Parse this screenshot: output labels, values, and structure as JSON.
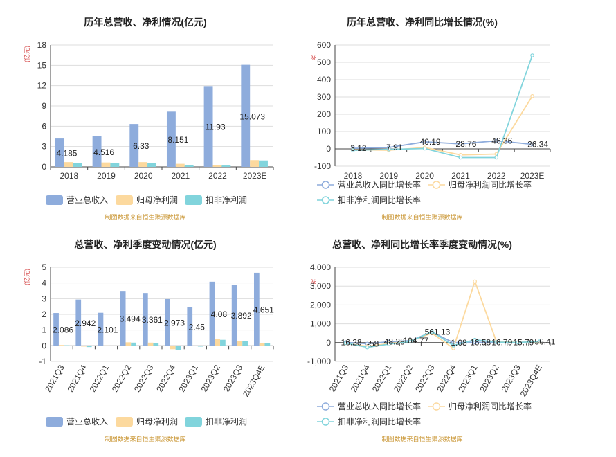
{
  "colors": {
    "revenue": "#8eacdc",
    "parent_profit": "#fcd99e",
    "nonrecurring": "#81d4dc",
    "line_revenue": "#8eacdc",
    "line_parent": "#fcd99e",
    "line_nonrec": "#81d4dc",
    "source": "#c8932e",
    "unit": "#d23b3b",
    "grid": "#dddddd",
    "axis": "#444444",
    "text": "#333333"
  },
  "source_text": "制图数据来自恒生聚源数据库",
  "chart_data": [
    {
      "type": "bar",
      "title": "历年总营收、净利情况(亿元)",
      "ylabel": "(亿元)",
      "categories": [
        "2018",
        "2019",
        "2020",
        "2021",
        "2022",
        "2023E"
      ],
      "ylim": [
        0,
        18
      ],
      "yticks": [
        0,
        3,
        6,
        9,
        12,
        15,
        18
      ],
      "series": [
        {
          "name": "营业总收入",
          "values": [
            4.185,
            4.516,
            6.33,
            8.151,
            11.93,
            15.073
          ]
        },
        {
          "name": "归母净利润",
          "values": [
            0.7,
            0.65,
            0.7,
            0.45,
            0.3,
            1.0
          ]
        },
        {
          "name": "扣非净利润",
          "values": [
            0.55,
            0.55,
            0.6,
            0.3,
            0.2,
            0.95
          ]
        }
      ],
      "data_labels": [
        "4.185",
        "4.516",
        "6.33",
        "8.151",
        "11.93",
        "15.073"
      ],
      "legend": [
        "营业总收入",
        "归母净利润",
        "扣非净利润"
      ]
    },
    {
      "type": "line",
      "title": "历年总营收、净利同比增长情况(%)",
      "ylabel": "%",
      "categories": [
        "2018",
        "2019",
        "2020",
        "2021",
        "2022",
        "2023E"
      ],
      "ylim": [
        -100,
        600
      ],
      "yticks": [
        -100,
        0,
        100,
        200,
        300,
        400,
        500,
        600
      ],
      "series": [
        {
          "name": "营业总收入同比增长率",
          "values": [
            3.12,
            7.91,
            40.19,
            28.76,
            46.36,
            26.34
          ]
        },
        {
          "name": "归母净利润同比增长率",
          "values": [
            -5,
            -8,
            8,
            -35,
            -30,
            305
          ]
        },
        {
          "name": "扣非净利润同比增长率",
          "values": [
            -8,
            -3,
            2,
            -50,
            -50,
            540
          ]
        }
      ],
      "data_labels": [
        "3.12",
        "7.91",
        "40.19",
        "28.76",
        "46.36",
        "26.34"
      ],
      "legend": [
        "营业总收入同比增长率",
        "归母净利润同比增长率",
        "扣非净利润同比增长率"
      ]
    },
    {
      "type": "bar",
      "title": "总营收、净利季度变动情况(亿元)",
      "ylabel": "(亿元)",
      "categories": [
        "2021Q3",
        "2021Q4",
        "2022Q1",
        "2022Q2",
        "2022Q3",
        "2022Q4",
        "2023Q1",
        "2023Q2",
        "2023Q3",
        "2023Q4E"
      ],
      "ylim": [
        -1,
        5
      ],
      "yticks": [
        -1,
        0,
        1,
        2,
        3,
        4,
        5
      ],
      "series": [
        {
          "name": "营业总收入",
          "values": [
            2.086,
            2.942,
            2.101,
            3.494,
            3.361,
            2.973,
            2.45,
            4.08,
            3.892,
            4.651
          ]
        },
        {
          "name": "归母净利润",
          "values": [
            0.05,
            -0.05,
            0.02,
            0.22,
            0.2,
            -0.22,
            -0.02,
            0.42,
            0.3,
            0.18
          ]
        },
        {
          "name": "扣非净利润",
          "values": [
            0.03,
            -0.08,
            0.0,
            0.2,
            0.15,
            -0.25,
            -0.05,
            0.38,
            0.32,
            0.15
          ]
        }
      ],
      "data_labels": [
        "2.086",
        "2.942",
        "2.101",
        "3.494",
        "3.361",
        "2.973",
        "2.45",
        "4.08",
        "3.892",
        "4.651"
      ],
      "legend": [
        "营业总收入",
        "归母净利润",
        "扣非净利润"
      ]
    },
    {
      "type": "line",
      "title": "总营收、净利同比增长率季度变动情况(%)",
      "ylabel": "%",
      "categories": [
        "2021Q3",
        "2021Q4",
        "2022Q1",
        "2022Q2",
        "2022Q3",
        "2022Q4",
        "2023Q1",
        "2023Q2",
        "2023Q3",
        "2023Q4E"
      ],
      "ylim": [
        -1000,
        4000
      ],
      "yticks": [
        -1000,
        0,
        1000,
        2000,
        3000,
        4000
      ],
      "ytick_labels": [
        "-1,000",
        "0",
        "1,000",
        "2,000",
        "3,000",
        "4,000"
      ],
      "series": [
        {
          "name": "营业总收入同比增长率",
          "values": [
            16.28,
            -58,
            48.28,
            104.77,
            561.13,
            1.08,
            16.58,
            16.79,
            15.79,
            56.41
          ]
        },
        {
          "name": "归母净利润同比增长率",
          "values": [
            -30,
            -200,
            -50,
            80,
            500,
            -300,
            3250,
            50,
            20,
            40
          ]
        },
        {
          "name": "扣非净利润同比增长率",
          "values": [
            -20,
            -250,
            -80,
            60,
            580,
            -150,
            150,
            30,
            10,
            60
          ]
        }
      ],
      "data_labels": [
        "16.28",
        "-58",
        "48.28",
        "104.77",
        "561.13",
        "1.08",
        "16.58",
        "16.79",
        "15.79",
        "56.41"
      ],
      "legend": [
        "营业总收入同比增长率",
        "归母净利润同比增长率",
        "扣非净利润同比增长率"
      ]
    }
  ]
}
